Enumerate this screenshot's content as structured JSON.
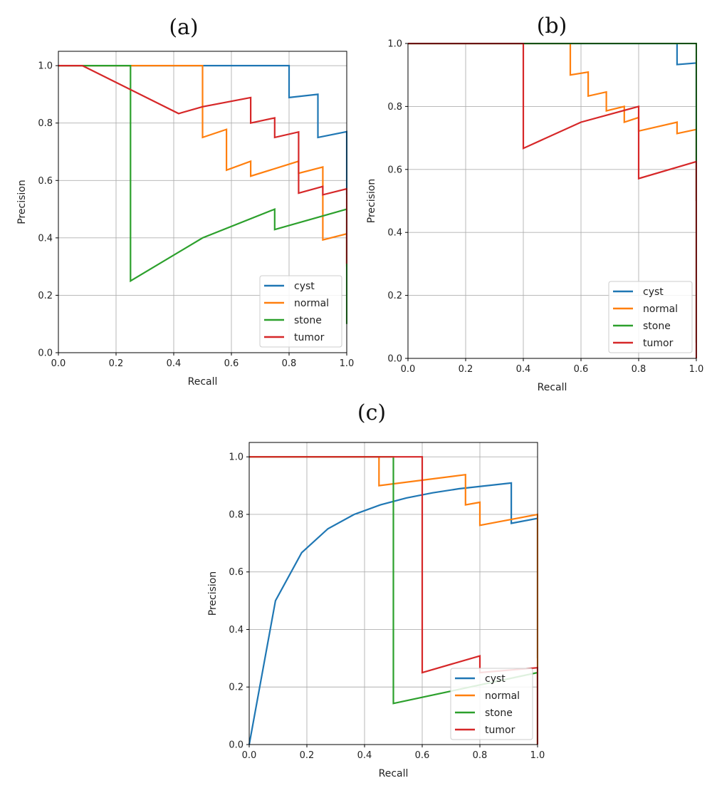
{
  "colors": {
    "cyst": "#1f77b4",
    "normal": "#ff7f0e",
    "stone": "#2ca02c",
    "tumor": "#d62728"
  },
  "chart_data": [
    {
      "label": "(a)",
      "type": "line",
      "xlabel": "Recall",
      "ylabel": "Precision",
      "xlim": [
        0,
        1
      ],
      "ylim": [
        0,
        1.05
      ],
      "xticks": [
        "0.0",
        "0.2",
        "0.4",
        "0.6",
        "0.8",
        "1.0"
      ],
      "yticks": [
        "0.0",
        "0.2",
        "0.4",
        "0.6",
        "0.8",
        "1.0"
      ],
      "grid": true,
      "legend_position": "lower right",
      "series": [
        {
          "name": "cyst",
          "points": [
            [
              0,
              1.0
            ],
            [
              0.8,
              1.0
            ],
            [
              0.8,
              0.889
            ],
            [
              0.9,
              0.9
            ],
            [
              0.9,
              0.75
            ],
            [
              1.0,
              0.77
            ],
            [
              1.0,
              0.55
            ]
          ]
        },
        {
          "name": "normal",
          "points": [
            [
              0,
              1.0
            ],
            [
              0.5,
              1.0
            ],
            [
              0.5,
              0.75
            ],
            [
              0.583,
              0.778
            ],
            [
              0.583,
              0.636
            ],
            [
              0.667,
              0.667
            ],
            [
              0.667,
              0.615
            ],
            [
              0.833,
              0.667
            ],
            [
              0.833,
              0.625
            ],
            [
              0.917,
              0.647
            ],
            [
              0.917,
              0.393
            ],
            [
              1.0,
              0.414
            ],
            [
              1.0,
              0.3
            ]
          ]
        },
        {
          "name": "stone",
          "points": [
            [
              0,
              1.0
            ],
            [
              0.25,
              1.0
            ],
            [
              0.25,
              0.25
            ],
            [
              0.5,
              0.4
            ],
            [
              0.75,
              0.5
            ],
            [
              0.75,
              0.429
            ],
            [
              1.0,
              0.5
            ],
            [
              1.0,
              0.1
            ]
          ]
        },
        {
          "name": "tumor",
          "points": [
            [
              0,
              1.0
            ],
            [
              0.083,
              1.0
            ],
            [
              0.417,
              0.833
            ],
            [
              0.5,
              0.857
            ],
            [
              0.667,
              0.889
            ],
            [
              0.667,
              0.8
            ],
            [
              0.75,
              0.818
            ],
            [
              0.75,
              0.75
            ],
            [
              0.833,
              0.769
            ],
            [
              0.833,
              0.556
            ],
            [
              0.917,
              0.579
            ],
            [
              0.917,
              0.55
            ],
            [
              1.0,
              0.571
            ],
            [
              1.0,
              0.31
            ]
          ]
        }
      ]
    },
    {
      "label": "(b)",
      "type": "line",
      "xlabel": "Recall",
      "ylabel": "Precision",
      "xlim": [
        0,
        1
      ],
      "ylim": [
        0,
        1.0
      ],
      "xticks": [
        "0.0",
        "0.2",
        "0.4",
        "0.6",
        "0.8",
        "1.0"
      ],
      "yticks": [
        "0.0",
        "0.2",
        "0.4",
        "0.6",
        "0.8",
        "1.0"
      ],
      "grid": true,
      "legend_position": "lower right",
      "series": [
        {
          "name": "cyst",
          "points": [
            [
              0,
              1.0
            ],
            [
              0.933,
              1.0
            ],
            [
              0.933,
              0.933
            ],
            [
              1.0,
              0.938
            ],
            [
              1.0,
              0.5
            ]
          ]
        },
        {
          "name": "normal",
          "points": [
            [
              0,
              1.0
            ],
            [
              0.563,
              1.0
            ],
            [
              0.563,
              0.9
            ],
            [
              0.625,
              0.909
            ],
            [
              0.625,
              0.833
            ],
            [
              0.688,
              0.846
            ],
            [
              0.688,
              0.786
            ],
            [
              0.75,
              0.8
            ],
            [
              0.75,
              0.75
            ],
            [
              0.8,
              0.765
            ],
            [
              0.8,
              0.722
            ],
            [
              0.933,
              0.75
            ],
            [
              0.933,
              0.714
            ],
            [
              1.0,
              0.727
            ],
            [
              1.0,
              0.5
            ]
          ]
        },
        {
          "name": "stone",
          "points": [
            [
              0,
              1.0
            ],
            [
              1.0,
              1.0
            ],
            [
              1.0,
              0.05
            ]
          ]
        },
        {
          "name": "tumor",
          "points": [
            [
              0,
              1.0
            ],
            [
              0.4,
              1.0
            ],
            [
              0.4,
              0.667
            ],
            [
              0.6,
              0.75
            ],
            [
              0.8,
              0.8
            ],
            [
              0.8,
              0.571
            ],
            [
              1.0,
              0.625
            ],
            [
              1.0,
              0.0
            ]
          ]
        }
      ]
    },
    {
      "label": "(c)",
      "type": "line",
      "xlabel": "Recall",
      "ylabel": "Precision",
      "xlim": [
        0,
        1
      ],
      "ylim": [
        0,
        1.05
      ],
      "xticks": [
        "0.0",
        "0.2",
        "0.4",
        "0.6",
        "0.8",
        "1.0"
      ],
      "yticks": [
        "0.0",
        "0.2",
        "0.4",
        "0.6",
        "0.8",
        "1.0"
      ],
      "grid": true,
      "legend_position": "lower right",
      "series": [
        {
          "name": "cyst",
          "points": [
            [
              0,
              0.0
            ],
            [
              0.091,
              0.5
            ],
            [
              0.182,
              0.667
            ],
            [
              0.273,
              0.75
            ],
            [
              0.364,
              0.8
            ],
            [
              0.455,
              0.833
            ],
            [
              0.545,
              0.857
            ],
            [
              0.636,
              0.875
            ],
            [
              0.727,
              0.889
            ],
            [
              0.909,
              0.909
            ],
            [
              0.909,
              0.769
            ],
            [
              1.0,
              0.786
            ],
            [
              1.0,
              0.3
            ]
          ]
        },
        {
          "name": "normal",
          "points": [
            [
              0,
              1.0
            ],
            [
              0.45,
              1.0
            ],
            [
              0.45,
              0.9
            ],
            [
              0.75,
              0.938
            ],
            [
              0.75,
              0.833
            ],
            [
              0.8,
              0.842
            ],
            [
              0.8,
              0.762
            ],
            [
              1.0,
              0.8
            ],
            [
              1.0,
              0.0
            ]
          ]
        },
        {
          "name": "stone",
          "points": [
            [
              0,
              1.0
            ],
            [
              0.5,
              1.0
            ],
            [
              0.5,
              0.143
            ],
            [
              1.0,
              0.25
            ],
            [
              1.0,
              0.0
            ]
          ]
        },
        {
          "name": "tumor",
          "points": [
            [
              0,
              1.0
            ],
            [
              0.6,
              1.0
            ],
            [
              0.6,
              0.25
            ],
            [
              0.8,
              0.308
            ],
            [
              0.8,
              0.25
            ],
            [
              1.0,
              0.267
            ],
            [
              1.0,
              0.0
            ]
          ]
        }
      ]
    }
  ]
}
